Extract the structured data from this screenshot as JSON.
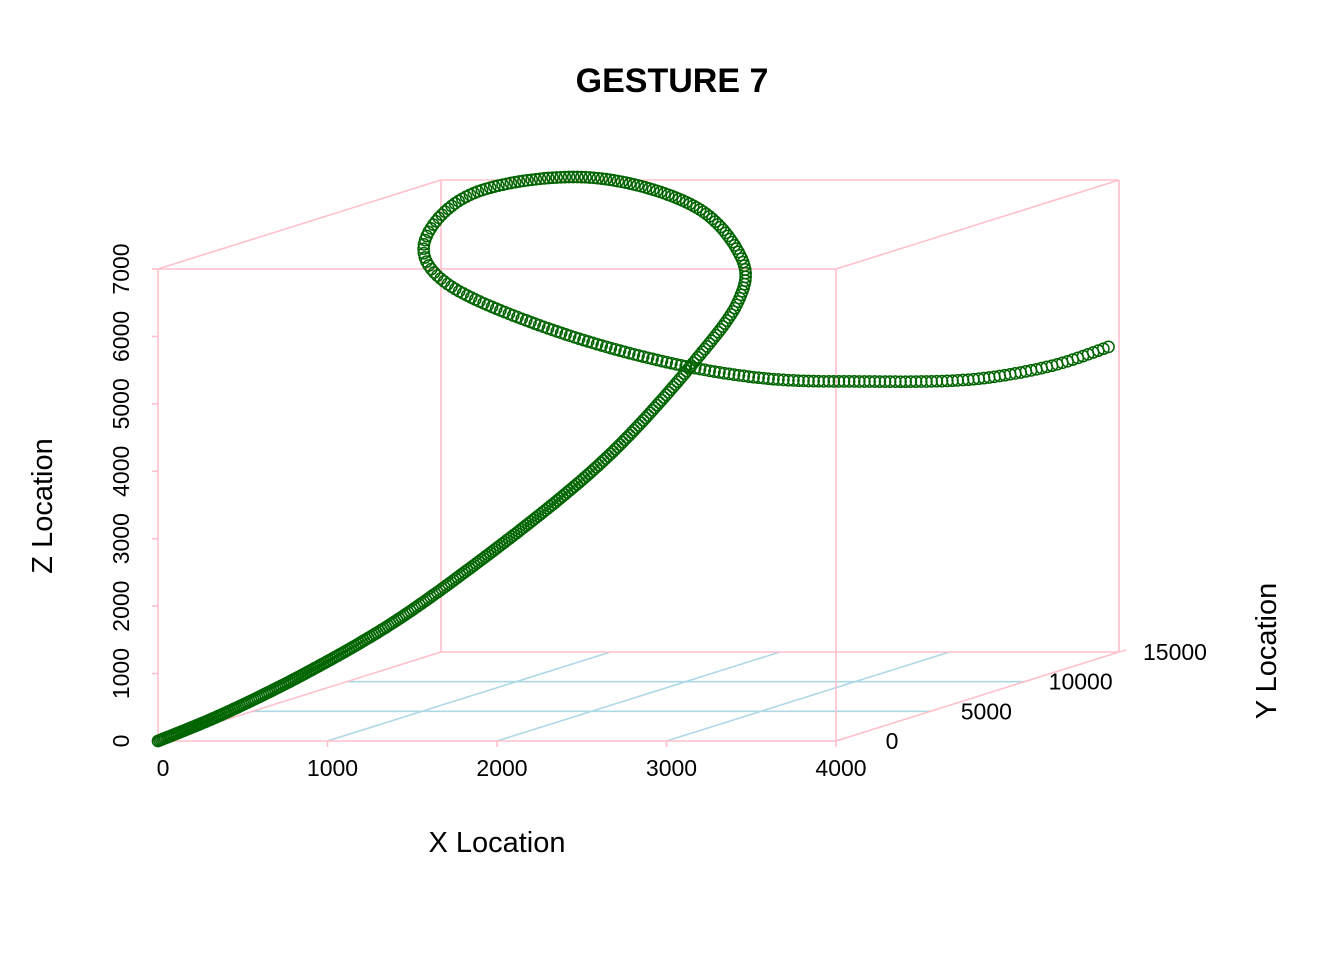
{
  "chart_data": {
    "type": "scatter3d",
    "title": "GESTURE 7",
    "xlabel": "X Location",
    "ylabel": "Y Location",
    "zlabel": "Z Location",
    "xlim": [
      0,
      4000
    ],
    "ylim": [
      0,
      15000
    ],
    "zlim": [
      0,
      7000
    ],
    "x_ticks": [
      "0",
      "1000",
      "2000",
      "3000",
      "4000"
    ],
    "y_ticks": [
      "0",
      "5000",
      "10000",
      "15000"
    ],
    "z_ticks": [
      "0",
      "1000",
      "2000",
      "3000",
      "4000",
      "5000",
      "6000",
      "7000"
    ],
    "grid": true,
    "colors": {
      "box": "#ffc0cb",
      "grid": "#add8e6",
      "points": "#006400"
    },
    "trajectory_keypoints": [
      {
        "x": 0,
        "y": 0,
        "z": 0
      },
      {
        "x": 380,
        "y": 100,
        "z": 400
      },
      {
        "x": 840,
        "y": 250,
        "z": 980
      },
      {
        "x": 1330,
        "y": 400,
        "z": 1700
      },
      {
        "x": 1820,
        "y": 550,
        "z": 2590
      },
      {
        "x": 2330,
        "y": 750,
        "z": 3620
      },
      {
        "x": 2670,
        "y": 950,
        "z": 4440
      },
      {
        "x": 3030,
        "y": 1250,
        "z": 5530
      },
      {
        "x": 3250,
        "y": 1550,
        "z": 6380
      },
      {
        "x": 3230,
        "y": 1900,
        "z": 7000
      },
      {
        "x": 2900,
        "y": 2300,
        "z": 7740
      },
      {
        "x": 2250,
        "y": 2600,
        "z": 8130
      },
      {
        "x": 1550,
        "y": 2900,
        "z": 7880
      },
      {
        "x": 1230,
        "y": 3100,
        "z": 7150
      },
      {
        "x": 1350,
        "y": 3200,
        "z": 6500
      },
      {
        "x": 1900,
        "y": 3350,
        "z": 5850
      },
      {
        "x": 2550,
        "y": 3600,
        "z": 5330
      },
      {
        "x": 3100,
        "y": 4300,
        "z": 5000
      },
      {
        "x": 3550,
        "y": 5700,
        "z": 4830
      },
      {
        "x": 3950,
        "y": 7500,
        "z": 4700
      },
      {
        "x": 4200,
        "y": 9500,
        "z": 4720
      },
      {
        "x": 4350,
        "y": 11300,
        "z": 4850
      }
    ]
  }
}
